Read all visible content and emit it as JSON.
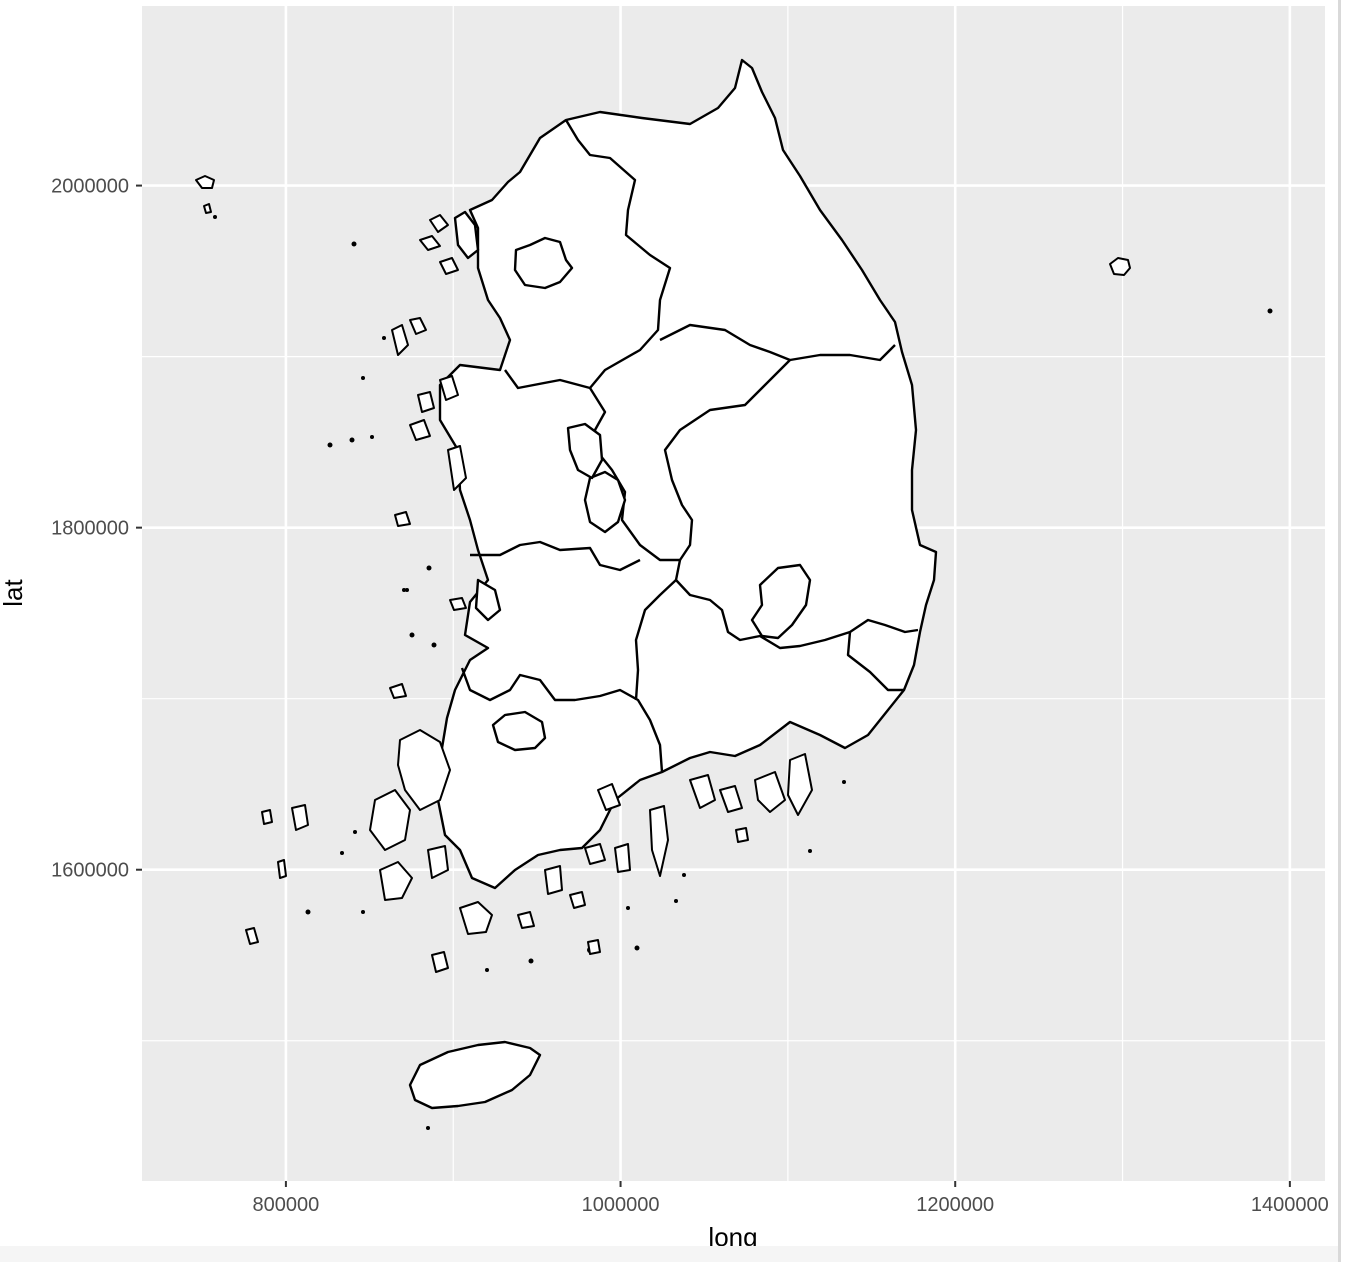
{
  "chart_data": {
    "type": "map",
    "xlabel": "long",
    "ylabel": "lat",
    "xlim": [
      714000,
      1421000
    ],
    "ylim": [
      1418000,
      2105000
    ],
    "x_ticks": [
      {
        "value": 800000,
        "label": "800000"
      },
      {
        "value": 1000000,
        "label": "1000000"
      },
      {
        "value": 1200000,
        "label": "1200000"
      },
      {
        "value": 1400000,
        "label": "1400000"
      }
    ],
    "y_ticks": [
      {
        "value": 1600000,
        "label": "1600000"
      },
      {
        "value": 1800000,
        "label": "1800000"
      },
      {
        "value": 2000000,
        "label": "2000000"
      }
    ],
    "minor_x": [
      900000,
      1100000,
      1300000
    ],
    "minor_y": [
      1500000,
      1700000,
      1900000
    ],
    "grid": true,
    "legend": "none",
    "colors": {
      "panel": "#ebebeb",
      "grid": "#ffffff",
      "fill": "#ffffff",
      "outline": "#000000",
      "tick_text": "#4d4d4d"
    }
  }
}
